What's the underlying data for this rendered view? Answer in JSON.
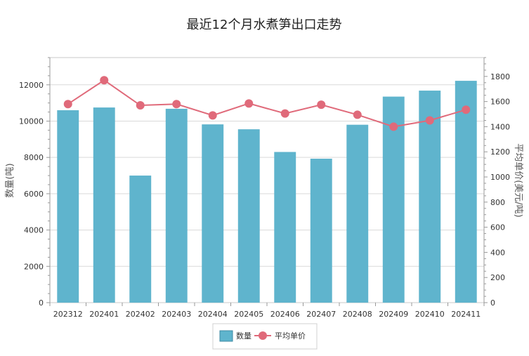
{
  "chart_data": {
    "type": "bar",
    "title": "最近12个月水煮笋出口走势",
    "categories": [
      "202312",
      "202401",
      "202402",
      "202403",
      "202404",
      "202405",
      "202406",
      "202407",
      "202408",
      "202409",
      "202410",
      "202411"
    ],
    "series": [
      {
        "name": "数量",
        "type": "bar",
        "axis": "left",
        "color": "#5fb4cd",
        "values": [
          10600,
          10750,
          7000,
          10680,
          9820,
          9550,
          8300,
          7930,
          9800,
          11350,
          11680,
          12220
        ]
      },
      {
        "name": "平均单价",
        "type": "line",
        "axis": "right",
        "color": "#e06a7a",
        "values": [
          1580,
          1770,
          1570,
          1580,
          1490,
          1585,
          1505,
          1575,
          1495,
          1400,
          1450,
          1535
        ]
      }
    ],
    "ylabel": "数量(吨)",
    "ylabel_right": "平均单价(美元/吨)",
    "ylim": [
      0,
      13500
    ],
    "ylim_right": [
      0,
      1950
    ],
    "yticks": [
      0,
      2000,
      4000,
      6000,
      8000,
      10000,
      12000
    ],
    "yticks_right": [
      0,
      200,
      400,
      600,
      800,
      1000,
      1200,
      1400,
      1600,
      1800
    ],
    "grid": true,
    "legend": "bottom-center"
  }
}
